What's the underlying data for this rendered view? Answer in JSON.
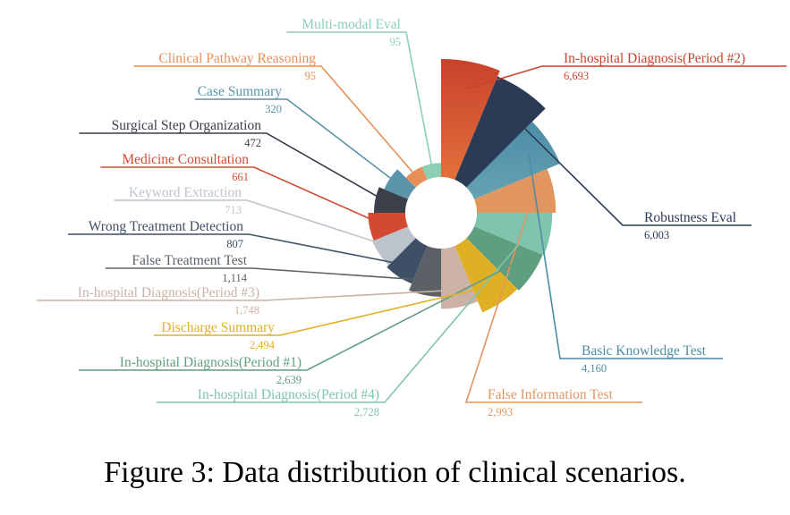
{
  "caption": "Figure 3: Data distribution of clinical scenarios.",
  "chart_data": {
    "type": "pie",
    "variant": "rose",
    "title": "",
    "series": [
      {
        "label": "In-hospital Diagnosis(Period #2)",
        "value": 6693,
        "value_text": "6,693",
        "color": "#c8422c",
        "color2": "#e2703a"
      },
      {
        "label": "Robustness Eval",
        "value": 6003,
        "value_text": "6,003",
        "color": "#2b3b55",
        "color2": "#2b3b55"
      },
      {
        "label": "Basic Knowledge Test",
        "value": 4160,
        "value_text": "4,160",
        "color": "#4d8ca6",
        "color2": "#64a3b3"
      },
      {
        "label": "False Information Test",
        "value": 2993,
        "value_text": "2,993",
        "color": "#e1955f",
        "color2": "#e1955f"
      },
      {
        "label": "In-hospital Diagnosis(Period #4)",
        "value": 2728,
        "value_text": "2,728",
        "color": "#7fc4ad",
        "color2": "#7fc4ad"
      },
      {
        "label": "In-hospital Diagnosis(Period #1)",
        "value": 2639,
        "value_text": "2,639",
        "color": "#5f9e7f",
        "color2": "#5f9e7f"
      },
      {
        "label": "Discharge Summary",
        "value": 2494,
        "value_text": "2,494",
        "color": "#e0b024",
        "color2": "#e0b024"
      },
      {
        "label": "In-hospital Diagnosis(Period #3)",
        "value": 1748,
        "value_text": "1,748",
        "color": "#cbb2a4",
        "color2": "#cbb2a4"
      },
      {
        "label": "False Treatment Test",
        "value": 1114,
        "value_text": "1,114",
        "color": "#5b6167",
        "color2": "#5b6167"
      },
      {
        "label": "Wrong Treatment Detection",
        "value": 807,
        "value_text": "807",
        "color": "#3d5066",
        "color2": "#3d5066"
      },
      {
        "label": "Keyword Extraction",
        "value": 713,
        "value_text": "713",
        "color": "#bcc3cc",
        "color2": "#bcc3cc"
      },
      {
        "label": "Medicine Consultation",
        "value": 661,
        "value_text": "661",
        "color": "#d34a32",
        "color2": "#d34a32"
      },
      {
        "label": "Surgical Step Organization",
        "value": 472,
        "value_text": "472",
        "color": "#3a3f4a",
        "color2": "#3a3f4a"
      },
      {
        "label": "Case Summary",
        "value": 320,
        "value_text": "320",
        "color": "#5a93aa",
        "color2": "#5a93aa"
      },
      {
        "label": "Clinical Pathway Reasoning",
        "value": 95,
        "value_text": "95",
        "color": "#e88f57",
        "color2": "#e88f57"
      },
      {
        "label": "Multi-modal Eval",
        "value": 95,
        "value_text": "95",
        "color": "#8ccfb4",
        "color2": "#8ccfb4"
      }
    ]
  }
}
